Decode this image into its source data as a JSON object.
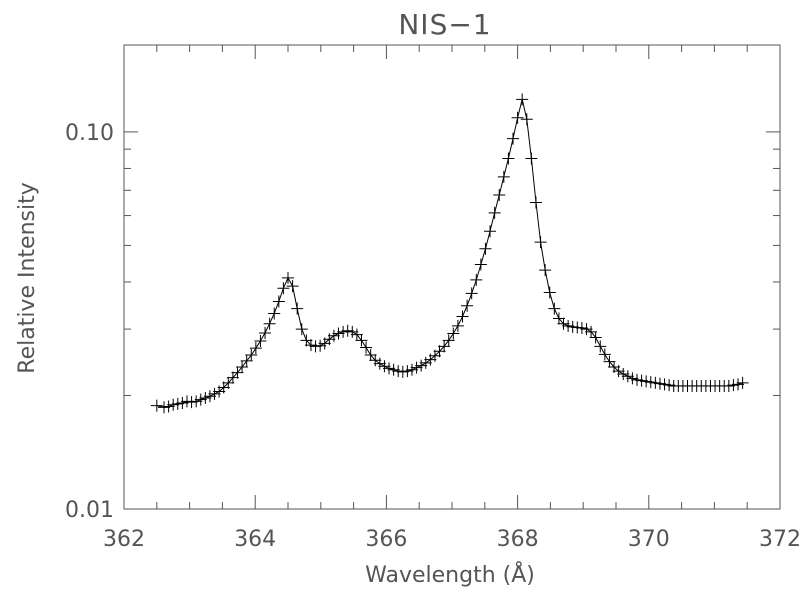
{
  "chart_data": {
    "type": "line",
    "title": "NIS−1",
    "xlabel": "Wavelength (Å)",
    "ylabel": "Relative Intensity",
    "xlim": [
      362,
      372
    ],
    "ylim": [
      0.01,
      0.17
    ],
    "yscale": "log",
    "grid": false,
    "xticks": [
      362,
      364,
      366,
      368,
      370,
      372
    ],
    "xtick_labels": [
      "362",
      "364",
      "366",
      "368",
      "370",
      "372"
    ],
    "yticks": [
      0.01,
      0.1
    ],
    "ytick_labels": [
      "0.01",
      "0.10"
    ],
    "line_color": "#000000",
    "axis_color": "#555555",
    "series": [
      {
        "marker": "plus",
        "x": [
          362.5,
          362.61,
          362.68,
          362.75,
          362.82,
          362.89,
          362.96,
          363.03,
          363.1,
          363.17,
          363.24,
          363.31,
          363.38,
          363.45,
          363.52,
          363.59,
          363.66,
          363.73,
          363.8,
          363.87,
          363.94,
          364.01,
          364.08,
          364.15,
          364.22,
          364.29,
          364.36,
          364.43,
          364.5,
          364.57,
          364.64,
          364.71,
          364.78,
          364.85,
          364.92,
          364.99,
          365.06,
          365.13,
          365.2,
          365.27,
          365.34,
          365.41,
          365.48,
          365.55,
          365.62,
          365.69,
          365.76,
          365.83,
          365.9,
          365.97,
          366.04,
          366.11,
          366.18,
          366.25,
          366.32,
          366.39,
          366.46,
          366.53,
          366.6,
          366.67,
          366.74,
          366.81,
          366.88,
          366.95,
          367.02,
          367.09,
          367.16,
          367.23,
          367.3,
          367.37,
          367.44,
          367.51,
          367.58,
          367.65,
          367.72,
          367.79,
          367.86,
          367.93,
          368.0,
          368.07,
          368.14,
          368.21,
          368.28,
          368.35,
          368.42,
          368.49,
          368.56,
          368.63,
          368.7,
          368.77,
          368.84,
          368.91,
          368.98,
          369.05,
          369.12,
          369.19,
          369.26,
          369.33,
          369.4,
          369.47,
          369.54,
          369.61,
          369.68,
          369.75,
          369.82,
          369.89,
          369.96,
          370.03,
          370.1,
          370.17,
          370.24,
          370.31,
          370.38,
          370.45,
          370.52,
          370.59,
          370.66,
          370.73,
          370.8,
          370.87,
          370.94,
          371.01,
          371.08,
          371.15,
          371.22,
          371.29,
          371.36,
          371.43
        ],
        "y": [
          0.0188,
          0.0186,
          0.0187,
          0.0189,
          0.019,
          0.0191,
          0.0193,
          0.0192,
          0.0193,
          0.0195,
          0.0197,
          0.0199,
          0.0202,
          0.0205,
          0.021,
          0.0216,
          0.0223,
          0.023,
          0.0238,
          0.0247,
          0.0256,
          0.0267,
          0.0279,
          0.0293,
          0.031,
          0.033,
          0.0355,
          0.0385,
          0.041,
          0.039,
          0.034,
          0.03,
          0.028,
          0.0272,
          0.027,
          0.0271,
          0.0275,
          0.0282,
          0.0288,
          0.0292,
          0.0295,
          0.0297,
          0.0295,
          0.029,
          0.028,
          0.0268,
          0.0256,
          0.0248,
          0.0243,
          0.0239,
          0.0236,
          0.0234,
          0.0232,
          0.0231,
          0.0232,
          0.0234,
          0.0237,
          0.024,
          0.0244,
          0.0249,
          0.0255,
          0.0262,
          0.027,
          0.028,
          0.0292,
          0.0306,
          0.0324,
          0.0346,
          0.0373,
          0.0405,
          0.0445,
          0.049,
          0.0545,
          0.061,
          0.068,
          0.076,
          0.085,
          0.096,
          0.109,
          0.122,
          0.108,
          0.085,
          0.065,
          0.051,
          0.043,
          0.0375,
          0.034,
          0.032,
          0.031,
          0.0306,
          0.0304,
          0.0303,
          0.0302,
          0.03,
          0.0295,
          0.0285,
          0.027,
          0.0257,
          0.0246,
          0.0238,
          0.0232,
          0.0228,
          0.0225,
          0.0222,
          0.022,
          0.0219,
          0.0218,
          0.0217,
          0.0216,
          0.0215,
          0.0214,
          0.0213,
          0.0212,
          0.0212,
          0.0212,
          0.0212,
          0.0212,
          0.0212,
          0.0212,
          0.0212,
          0.0212,
          0.0212,
          0.0212,
          0.0212,
          0.0212,
          0.0213,
          0.0214,
          0.0216
        ]
      }
    ]
  }
}
